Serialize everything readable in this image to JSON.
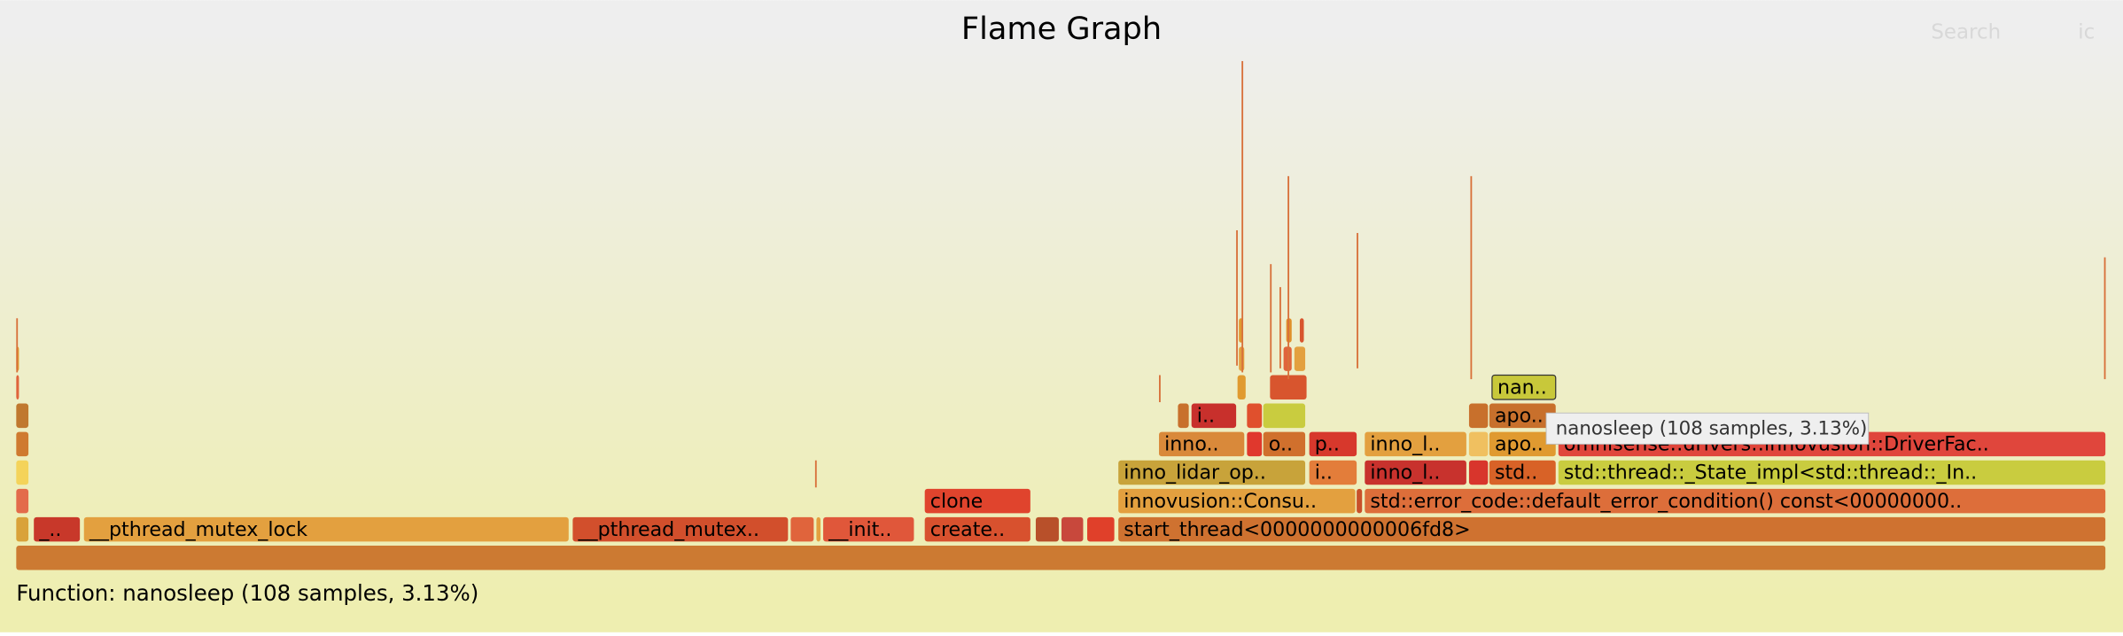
{
  "header": {
    "title": "Flame Graph",
    "search": "Search",
    "ic": "ic"
  },
  "frames": [
    "_..",
    "__pthread_mutex_lock",
    "__pthread_mutex..",
    "__init..",
    "create..",
    "start_thread<0000000000006fd8>",
    "clone",
    "innovusion::Consu..",
    "std::error_code::default_error_condition() const<00000000..",
    "inno_lidar_op..",
    "i..",
    "inno_l..",
    "std..",
    "std::thread::_State_impl<std::thread::_In..",
    "inno..",
    "o..",
    "p..",
    "inno_l..",
    "apo..",
    "omnisense::drivers::innovusion::DriverFac..",
    "i..",
    "apo..",
    "nan.."
  ],
  "tooltip": "nanosleep (108 samples, 3.13%)",
  "status": "Function: nanosleep (108 samples, 3.13%)"
}
